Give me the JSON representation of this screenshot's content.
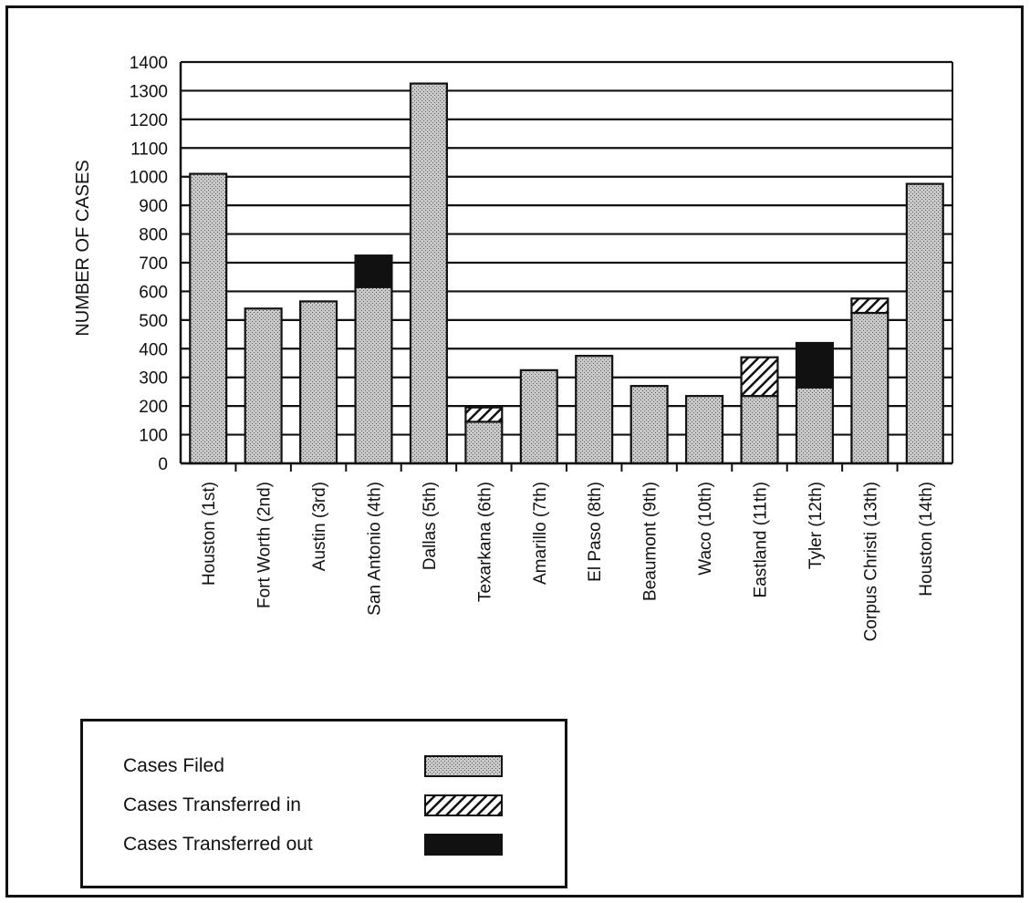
{
  "chart_data": {
    "type": "bar",
    "stacked": true,
    "title": "",
    "xlabel": "",
    "ylabel": "NUMBER OF CASES",
    "ylim": [
      0,
      1400
    ],
    "yticks": [
      0,
      100,
      200,
      300,
      400,
      500,
      600,
      700,
      800,
      900,
      1000,
      1100,
      1200,
      1300,
      1400
    ],
    "grid": true,
    "categories": [
      "Houston (1st)",
      "Fort Worth (2nd)",
      "Austin (3rd)",
      "San Antonio (4th)",
      "Dallas (5th)",
      "Texarkana (6th)",
      "Amarillo (7th)",
      "El Paso (8th)",
      "Beaumont (9th)",
      "Waco (10th)",
      "Eastland (11th)",
      "Tyler (12th)",
      "Corpus Christi (13th)",
      "Houston (14th)"
    ],
    "series": [
      {
        "name": "Cases Filed",
        "pattern": "dotted",
        "values": [
          1010,
          540,
          565,
          615,
          1325,
          145,
          325,
          375,
          270,
          235,
          235,
          265,
          525,
          975
        ]
      },
      {
        "name": "Cases Transferred in",
        "pattern": "hatched",
        "values": [
          0,
          0,
          0,
          0,
          0,
          50,
          0,
          0,
          0,
          0,
          135,
          0,
          50,
          0
        ]
      },
      {
        "name": "Cases Transferred out",
        "pattern": "solid",
        "values": [
          0,
          0,
          0,
          110,
          0,
          0,
          0,
          0,
          0,
          0,
          0,
          155,
          0,
          0
        ]
      }
    ],
    "legend_position": "bottom-left"
  },
  "colors": {
    "filled": "#b8b8b8",
    "ink": "#111111"
  }
}
